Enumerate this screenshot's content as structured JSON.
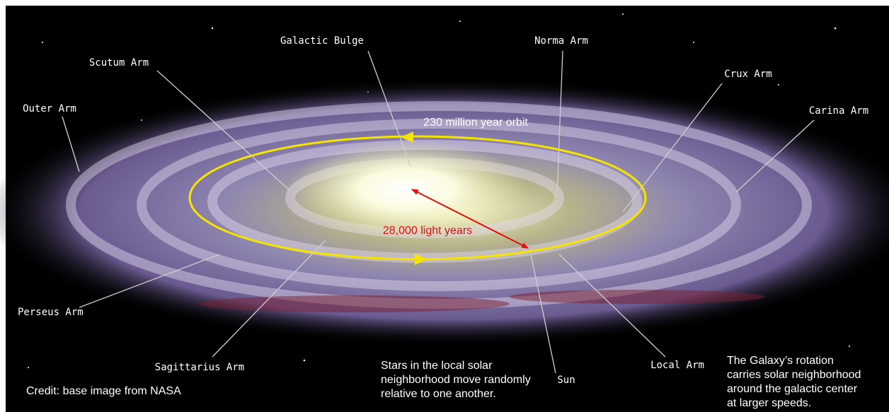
{
  "labels": {
    "galactic_bulge": "Galactic Bulge",
    "norma_arm": "Norma Arm",
    "scutum_arm": "Scutum Arm",
    "crux_arm": "Crux Arm",
    "outer_arm": "Outer Arm",
    "carina_arm": "Carina Arm",
    "perseus_arm": "Perseus Arm",
    "sagittarius_arm": "Sagittarius Arm",
    "local_arm": "Local Arm",
    "sun": "Sun"
  },
  "orbit_label": "230 million year orbit",
  "distance_label": "28,000 light years",
  "notes": {
    "local": [
      "Stars in the local solar",
      "neighborhood move randomly",
      "relative to one another."
    ],
    "rotation": [
      "The Galaxy’s rotation",
      "carries solar neighborhood",
      "around the galactic center",
      "at larger speeds."
    ]
  },
  "credit": "Credit: base image from NASA"
}
